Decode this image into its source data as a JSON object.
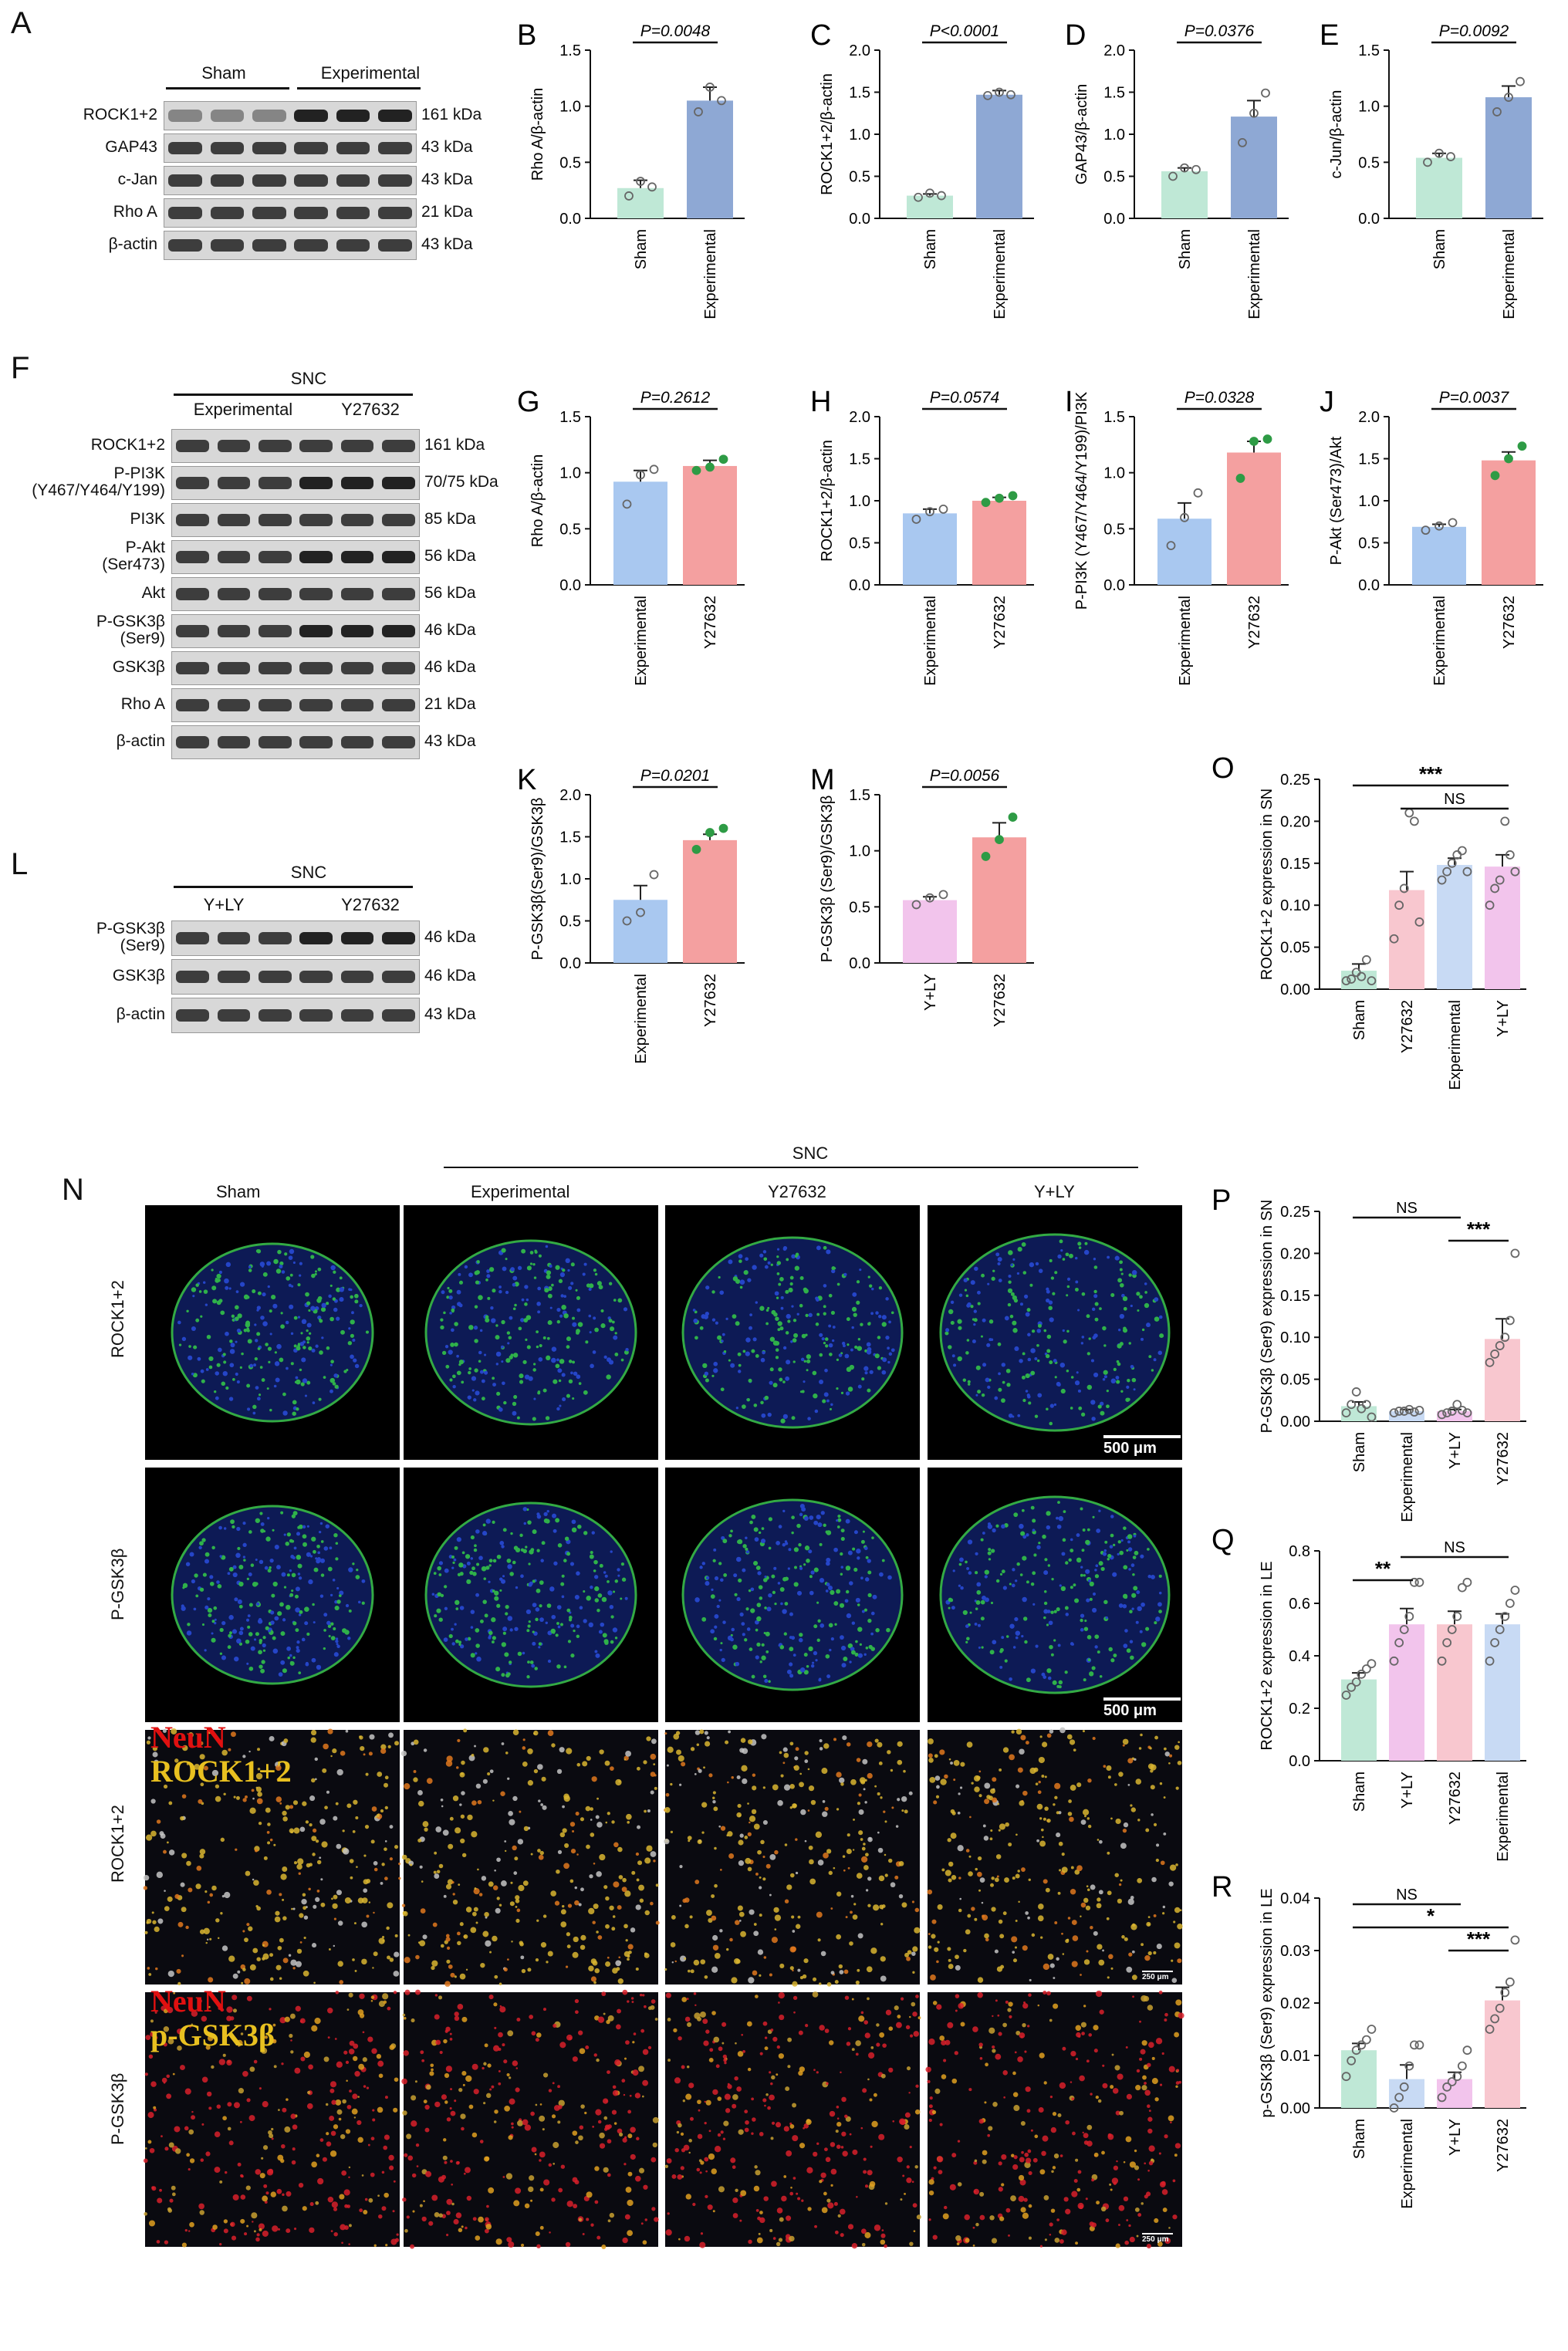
{
  "colors": {
    "sham": "#bfe8d6",
    "experimental_blue": "#8ea8d4",
    "y27632": "#f4a0a0",
    "experimental_lightblue": "#a9c8f0",
    "yly": "#f2c4ec",
    "y27632_pink": "#f8c7cf",
    "dot_gray": "#888888",
    "dot_green": "#2e9b45"
  },
  "panels": {
    "A": {
      "letter": "A",
      "groups": [
        "Sham",
        "Experimental"
      ],
      "rows": [
        {
          "label": "ROCK1+2",
          "kda": "161 kDa"
        },
        {
          "label": "GAP43",
          "kda": "43 kDa"
        },
        {
          "label": "c-Jan",
          "kda": "43 kDa"
        },
        {
          "label": "Rho A",
          "kda": "21 kDa"
        },
        {
          "label": "β-actin",
          "kda": "43 kDa"
        }
      ]
    },
    "F": {
      "letter": "F",
      "super": "SNC",
      "groups": [
        "Experimental",
        "Y27632"
      ],
      "rows": [
        {
          "label": "ROCK1+2",
          "kda": "161 kDa"
        },
        {
          "label": "P-PI3K\n(Y467/Y464/Y199)",
          "kda": "70/75 kDa"
        },
        {
          "label": "PI3K",
          "kda": "85 kDa"
        },
        {
          "label": "P-Akt\n(Ser473)",
          "kda": "56 kDa"
        },
        {
          "label": "Akt",
          "kda": "56 kDa"
        },
        {
          "label": "P-GSK3β\n(Ser9)",
          "kda": "46 kDa"
        },
        {
          "label": "GSK3β",
          "kda": "46 kDa"
        },
        {
          "label": "Rho A",
          "kda": "21 kDa"
        },
        {
          "label": "β-actin",
          "kda": "43 kDa"
        }
      ]
    },
    "L": {
      "letter": "L",
      "super": "SNC",
      "groups": [
        "Y+LY",
        "Y27632"
      ],
      "rows": [
        {
          "label": "P-GSK3β\n(Ser9)",
          "kda": "46 kDa"
        },
        {
          "label": "GSK3β",
          "kda": "46 kDa"
        },
        {
          "label": "β-actin",
          "kda": "43 kDa"
        }
      ]
    },
    "N": {
      "letter": "N",
      "super": "SNC",
      "columns": [
        "Sham",
        "Experimental",
        "Y27632",
        "Y+LY"
      ],
      "rows": [
        "ROCK1+2",
        "P-GSK3β",
        "ROCK1+2",
        "P-GSK3β"
      ],
      "scale1": "500 μm",
      "scale2": "500 μm",
      "scale3": "250 μm",
      "scale4": "250 μm",
      "overlay3a": "NeuN",
      "overlay3b": "ROCK1+2",
      "overlay4a": "NeuN",
      "overlay4b": "p-GSK3β"
    }
  },
  "chart_data": [
    {
      "id": "B",
      "letter": "B",
      "type": "bar",
      "categories": [
        "Sham",
        "Experimental"
      ],
      "values": [
        0.27,
        1.05
      ],
      "ylabel": "Rho A/β-actin",
      "ylim": [
        0,
        1.5
      ],
      "yticks": [
        0.0,
        0.5,
        1.0,
        1.5
      ],
      "pvalue": "P=0.0048",
      "colors": [
        "#bfe8d6",
        "#8ea8d4"
      ],
      "points": [
        [
          0.2,
          0.33,
          0.28
        ],
        [
          0.95,
          1.17,
          1.05
        ]
      ],
      "errors": [
        0.07,
        0.12
      ]
    },
    {
      "id": "C",
      "letter": "C",
      "type": "bar",
      "categories": [
        "Sham",
        "Experimental"
      ],
      "values": [
        0.27,
        1.47
      ],
      "ylabel": "ROCK1+2/β-actin",
      "ylim": [
        0,
        2.0
      ],
      "yticks": [
        0.0,
        0.5,
        1.0,
        1.5,
        2.0
      ],
      "pvalue": "P<0.0001",
      "colors": [
        "#bfe8d6",
        "#8ea8d4"
      ],
      "points": [
        [
          0.25,
          0.3,
          0.27
        ],
        [
          1.46,
          1.5,
          1.47
        ]
      ],
      "errors": [
        0.02,
        0.05
      ]
    },
    {
      "id": "D",
      "letter": "D",
      "type": "bar",
      "categories": [
        "Sham",
        "Experimental"
      ],
      "values": [
        0.56,
        1.21
      ],
      "ylabel": "GAP43/β-actin",
      "ylim": [
        0,
        2.0
      ],
      "yticks": [
        0.0,
        0.5,
        1.0,
        1.5,
        2.0
      ],
      "pvalue": "P=0.0376",
      "colors": [
        "#bfe8d6",
        "#8ea8d4"
      ],
      "points": [
        [
          0.5,
          0.6,
          0.58
        ],
        [
          0.9,
          1.25,
          1.49
        ]
      ],
      "errors": [
        0.04,
        0.19
      ]
    },
    {
      "id": "E",
      "letter": "E",
      "type": "bar",
      "categories": [
        "Sham",
        "Experimental"
      ],
      "values": [
        0.54,
        1.08
      ],
      "ylabel": "c-Jun/β-actin",
      "ylim": [
        0,
        1.5
      ],
      "yticks": [
        0.0,
        0.5,
        1.0,
        1.5
      ],
      "pvalue": "P=0.0092",
      "colors": [
        "#bfe8d6",
        "#8ea8d4"
      ],
      "points": [
        [
          0.5,
          0.58,
          0.55
        ],
        [
          0.95,
          1.08,
          1.22
        ]
      ],
      "errors": [
        0.04,
        0.1
      ]
    },
    {
      "id": "G",
      "letter": "G",
      "type": "bar",
      "categories": [
        "Experimental",
        "Y27632"
      ],
      "values": [
        0.92,
        1.06
      ],
      "ylabel": "Rho A/β-actin",
      "ylim": [
        0,
        1.5
      ],
      "yticks": [
        0.0,
        0.5,
        1.0,
        1.5
      ],
      "pvalue": "P=0.2612",
      "colors": [
        "#a9c8f0",
        "#f4a0a0"
      ],
      "points": [
        [
          0.72,
          0.98,
          1.03
        ],
        [
          1.02,
          1.05,
          1.12
        ]
      ],
      "errors": [
        0.1,
        0.05
      ]
    },
    {
      "id": "H",
      "letter": "H",
      "type": "bar",
      "categories": [
        "Experimental",
        "Y27632"
      ],
      "values": [
        0.85,
        1.0
      ],
      "ylabel": "ROCK1+2/β-actin",
      "ylim": [
        0,
        2.0
      ],
      "yticks": [
        0.0,
        0.5,
        1.0,
        1.5,
        2.0
      ],
      "pvalue": "P=0.0574",
      "colors": [
        "#a9c8f0",
        "#f4a0a0"
      ],
      "points": [
        [
          0.78,
          0.87,
          0.9
        ],
        [
          0.98,
          1.03,
          1.06
        ]
      ],
      "errors": [
        0.05,
        0.04
      ]
    },
    {
      "id": "I",
      "letter": "I",
      "type": "bar",
      "categories": [
        "Experimental",
        "Y27632"
      ],
      "values": [
        0.59,
        1.18
      ],
      "ylabel": "P-PI3K (Y467/Y464/Y199)/PI3K",
      "ylim": [
        0,
        1.5
      ],
      "yticks": [
        0.0,
        0.5,
        1.0,
        1.5
      ],
      "pvalue": "P=0.0328",
      "colors": [
        "#a9c8f0",
        "#f4a0a0"
      ],
      "points": [
        [
          0.35,
          0.6,
          0.82
        ],
        [
          0.95,
          1.28,
          1.3
        ]
      ],
      "errors": [
        0.14,
        0.1
      ]
    },
    {
      "id": "J",
      "letter": "J",
      "type": "bar",
      "categories": [
        "Experimental",
        "Y27632"
      ],
      "values": [
        0.69,
        1.48
      ],
      "ylabel": "P-Akt (Ser473)/Akt",
      "ylim": [
        0,
        2.0
      ],
      "yticks": [
        0.0,
        0.5,
        1.0,
        1.5,
        2.0
      ],
      "pvalue": "P=0.0037",
      "colors": [
        "#a9c8f0",
        "#f4a0a0"
      ],
      "points": [
        [
          0.65,
          0.7,
          0.74
        ],
        [
          1.3,
          1.5,
          1.65
        ]
      ],
      "errors": [
        0.03,
        0.1
      ]
    },
    {
      "id": "K",
      "letter": "K",
      "type": "bar",
      "categories": [
        "Experimental",
        "Y27632"
      ],
      "values": [
        0.75,
        1.46
      ],
      "ylabel": "P-GSK3β(Ser9)/GSK3β",
      "ylim": [
        0,
        2.0
      ],
      "yticks": [
        0.0,
        0.5,
        1.0,
        1.5,
        2.0
      ],
      "pvalue": "P=0.0201",
      "colors": [
        "#a9c8f0",
        "#f4a0a0"
      ],
      "points": [
        [
          0.5,
          0.6,
          1.05
        ],
        [
          1.35,
          1.55,
          1.6
        ]
      ],
      "errors": [
        0.17,
        0.07
      ]
    },
    {
      "id": "M",
      "letter": "M",
      "type": "bar",
      "categories": [
        "Y+LY",
        "Y27632"
      ],
      "values": [
        0.56,
        1.12
      ],
      "ylabel": "P-GSK3β (Ser9)/GSK3β",
      "ylim": [
        0,
        1.5
      ],
      "yticks": [
        0.0,
        0.5,
        1.0,
        1.5
      ],
      "pvalue": "P=0.0056",
      "colors": [
        "#f2c4ec",
        "#f4a0a0"
      ],
      "points": [
        [
          0.52,
          0.58,
          0.61
        ],
        [
          0.95,
          1.1,
          1.3
        ]
      ],
      "errors": [
        0.03,
        0.13
      ]
    },
    {
      "id": "O",
      "letter": "O",
      "type": "bar",
      "categories": [
        "Sham",
        "Y27632",
        "Experimental",
        "Y+LY"
      ],
      "values": [
        0.022,
        0.118,
        0.148,
        0.146
      ],
      "ylabel": "ROCK1+2 expression in SN",
      "ylim": [
        0,
        0.25
      ],
      "yticks": [
        0.0,
        0.05,
        0.1,
        0.15,
        0.2,
        0.25
      ],
      "colors": [
        "#bfe8d6",
        "#f8c7cf",
        "#c8daf4",
        "#f2c4ec"
      ],
      "points": [
        [
          0.01,
          0.012,
          0.02,
          0.015,
          0.035,
          0.01
        ],
        [
          0.06,
          0.1,
          0.12,
          0.21,
          0.2,
          0.08
        ],
        [
          0.13,
          0.14,
          0.15,
          0.16,
          0.165,
          0.14
        ],
        [
          0.1,
          0.12,
          0.13,
          0.2,
          0.16,
          0.14
        ]
      ],
      "errors": [
        0.008,
        0.022,
        0.008,
        0.014
      ],
      "sig": [
        {
          "from": 0,
          "to": 3,
          "label": "***",
          "level": 0
        },
        {
          "from": 1,
          "to": 3,
          "label": "NS",
          "level": 1
        }
      ]
    },
    {
      "id": "P",
      "letter": "P",
      "type": "bar",
      "categories": [
        "Sham",
        "Experimental",
        "Y+LY",
        "Y27632"
      ],
      "values": [
        0.018,
        0.012,
        0.012,
        0.098
      ],
      "ylabel": "P-GSK3β (Ser9) expression in SN",
      "ylim": [
        0,
        0.25
      ],
      "yticks": [
        0.0,
        0.05,
        0.1,
        0.15,
        0.2,
        0.25
      ],
      "colors": [
        "#bfe8d6",
        "#c8daf4",
        "#f2c4ec",
        "#f8c7cf"
      ],
      "points": [
        [
          0.01,
          0.02,
          0.035,
          0.015,
          0.02,
          0.005
        ],
        [
          0.01,
          0.012,
          0.012,
          0.014,
          0.011,
          0.013
        ],
        [
          0.008,
          0.01,
          0.012,
          0.02,
          0.013,
          0.01
        ],
        [
          0.07,
          0.08,
          0.09,
          0.1,
          0.12,
          0.2
        ]
      ],
      "errors": [
        0.005,
        0.002,
        0.002,
        0.024
      ],
      "sig": [
        {
          "from": 2,
          "to": 3,
          "label": "***",
          "level": 1
        },
        {
          "from": 0,
          "to": 2,
          "label": "NS",
          "level": 0
        }
      ]
    },
    {
      "id": "Q",
      "letter": "Q",
      "type": "bar",
      "categories": [
        "Sham",
        "Y+LY",
        "Y27632",
        "Experimental"
      ],
      "values": [
        0.31,
        0.52,
        0.52,
        0.52
      ],
      "ylabel": "ROCK1+2 expression in LE",
      "ylim": [
        0,
        0.8
      ],
      "yticks": [
        0.0,
        0.2,
        0.4,
        0.6,
        0.8
      ],
      "colors": [
        "#bfe8d6",
        "#f2c4ec",
        "#f8c7cf",
        "#c8daf4"
      ],
      "points": [
        [
          0.25,
          0.28,
          0.3,
          0.33,
          0.35,
          0.37
        ],
        [
          0.38,
          0.45,
          0.5,
          0.55,
          0.68,
          0.68
        ],
        [
          0.38,
          0.45,
          0.5,
          0.55,
          0.66,
          0.68
        ],
        [
          0.38,
          0.45,
          0.5,
          0.55,
          0.6,
          0.65
        ]
      ],
      "errors": [
        0.025,
        0.06,
        0.05,
        0.04
      ],
      "sig": [
        {
          "from": 0,
          "to": 1,
          "label": "**",
          "level": 1
        },
        {
          "from": 1,
          "to": 3,
          "label": "NS",
          "level": 0
        }
      ]
    },
    {
      "id": "R",
      "letter": "R",
      "type": "bar",
      "categories": [
        "Sham",
        "Experimental",
        "Y+LY",
        "Y27632"
      ],
      "values": [
        0.011,
        0.0055,
        0.0055,
        0.0205
      ],
      "ylabel": "p-GSK3β (Ser9) expression in LE",
      "ylim": [
        0,
        0.04
      ],
      "yticks": [
        0.0,
        0.01,
        0.02,
        0.03,
        0.04
      ],
      "colors": [
        "#bfe8d6",
        "#c8daf4",
        "#f2c4ec",
        "#f8c7cf"
      ],
      "points": [
        [
          0.006,
          0.009,
          0.011,
          0.012,
          0.013,
          0.015
        ],
        [
          0.0,
          0.002,
          0.004,
          0.008,
          0.012,
          0.012
        ],
        [
          0.002,
          0.004,
          0.005,
          0.006,
          0.008,
          0.011
        ],
        [
          0.015,
          0.017,
          0.019,
          0.022,
          0.024,
          0.032
        ]
      ],
      "errors": [
        0.0013,
        0.0027,
        0.0013,
        0.0025
      ],
      "sig": [
        {
          "from": 2,
          "to": 3,
          "label": "***",
          "level": 2
        },
        {
          "from": 0,
          "to": 3,
          "label": "*",
          "level": 1
        },
        {
          "from": 0,
          "to": 2,
          "label": "NS",
          "level": 0
        }
      ]
    }
  ]
}
